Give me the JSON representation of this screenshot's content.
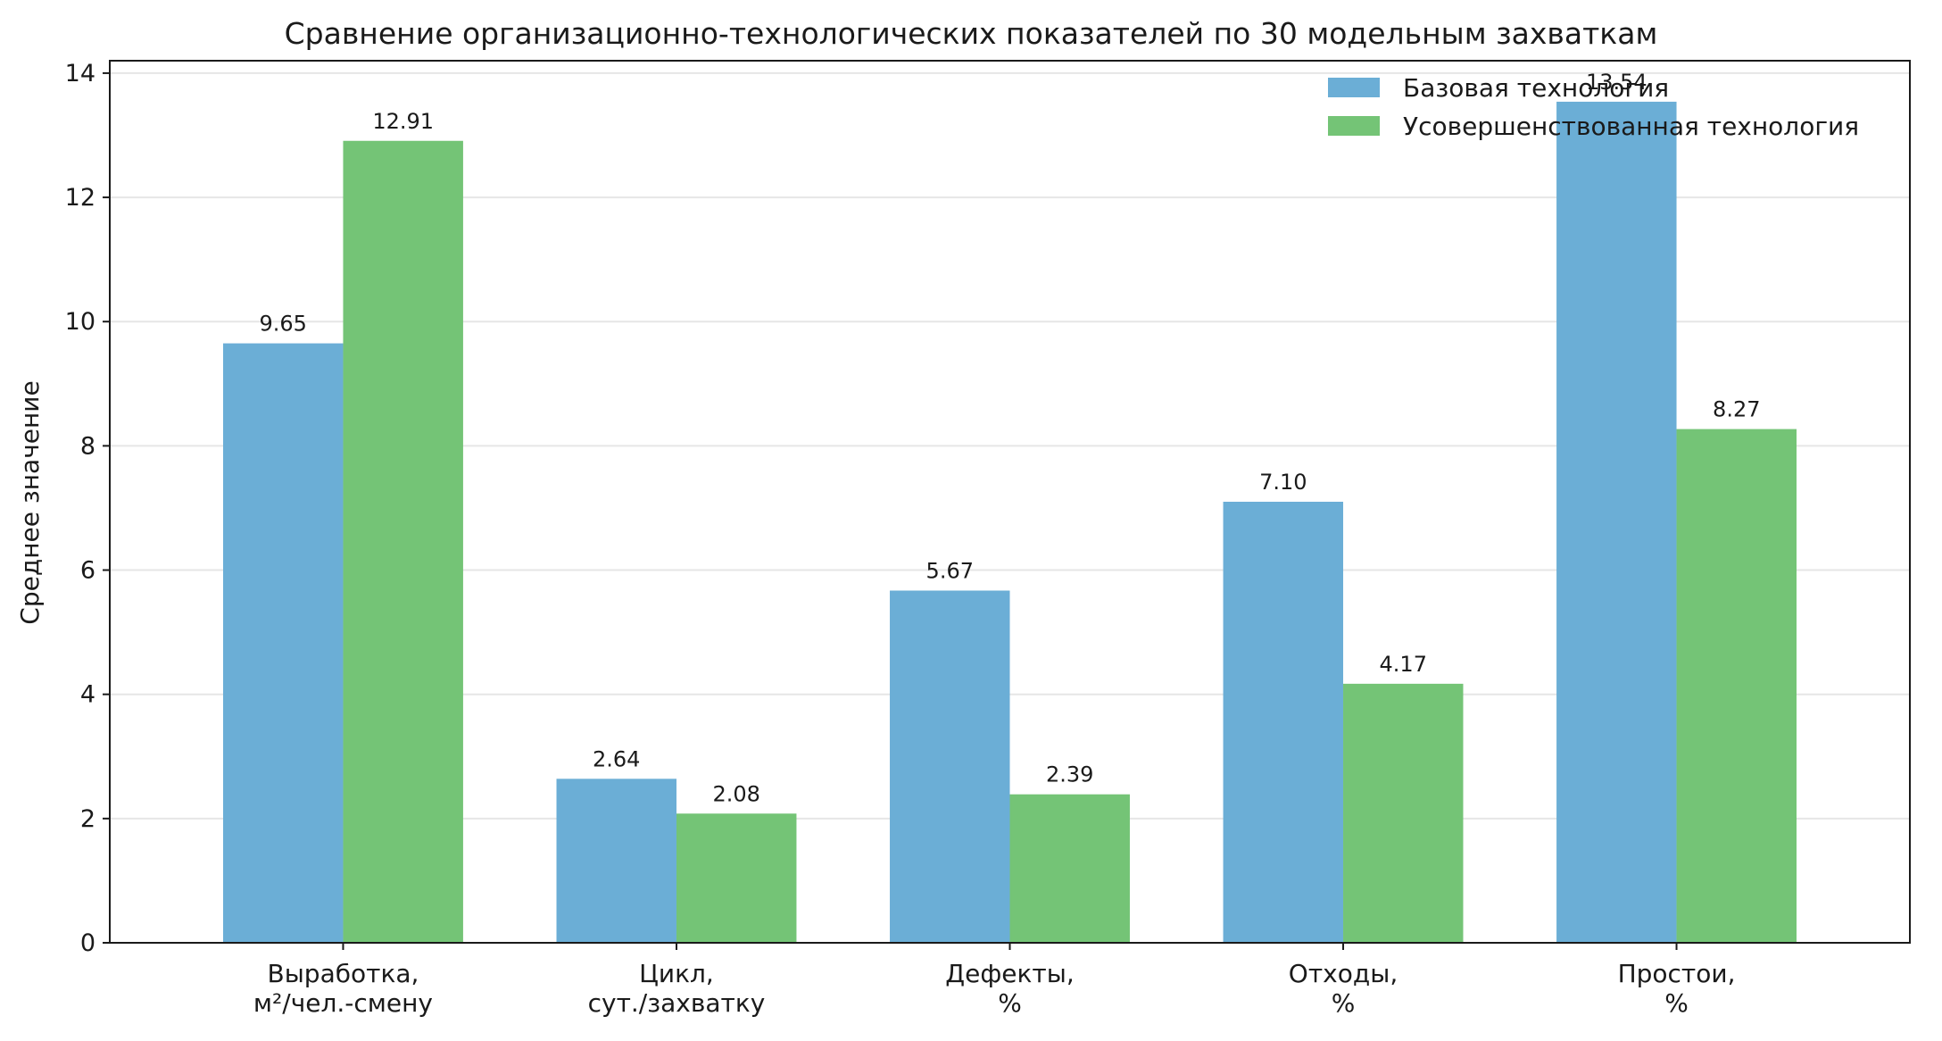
{
  "chart_data": {
    "type": "bar",
    "title": "Сравнение организационно-технологических показателей по 30 модельным захваткам",
    "xlabel": "",
    "ylabel": "Среднее значение",
    "categories": [
      [
        "Выработка,",
        "м²/чел.-смену"
      ],
      [
        "Цикл,",
        "сут./захватку"
      ],
      [
        "Дефекты,",
        "%"
      ],
      [
        "Отходы,",
        "%"
      ],
      [
        "Простои,",
        "%"
      ]
    ],
    "series": [
      {
        "name": "Базовая технология",
        "color": "#6baed6",
        "values": [
          9.65,
          2.64,
          5.67,
          7.1,
          13.54
        ],
        "labels": [
          "9.65",
          "2.64",
          "5.67",
          "7.10",
          "13.54"
        ]
      },
      {
        "name": "Усовершенствованная технология",
        "color": "#74c476",
        "values": [
          12.91,
          2.08,
          2.39,
          4.17,
          8.27
        ],
        "labels": [
          "12.91",
          "2.08",
          "2.39",
          "4.17",
          "8.27"
        ]
      }
    ],
    "ylim": [
      0,
      14.2
    ],
    "yticks": [
      0,
      2,
      4,
      6,
      8,
      10,
      12,
      14
    ],
    "grid": true,
    "legend": "top-right"
  }
}
